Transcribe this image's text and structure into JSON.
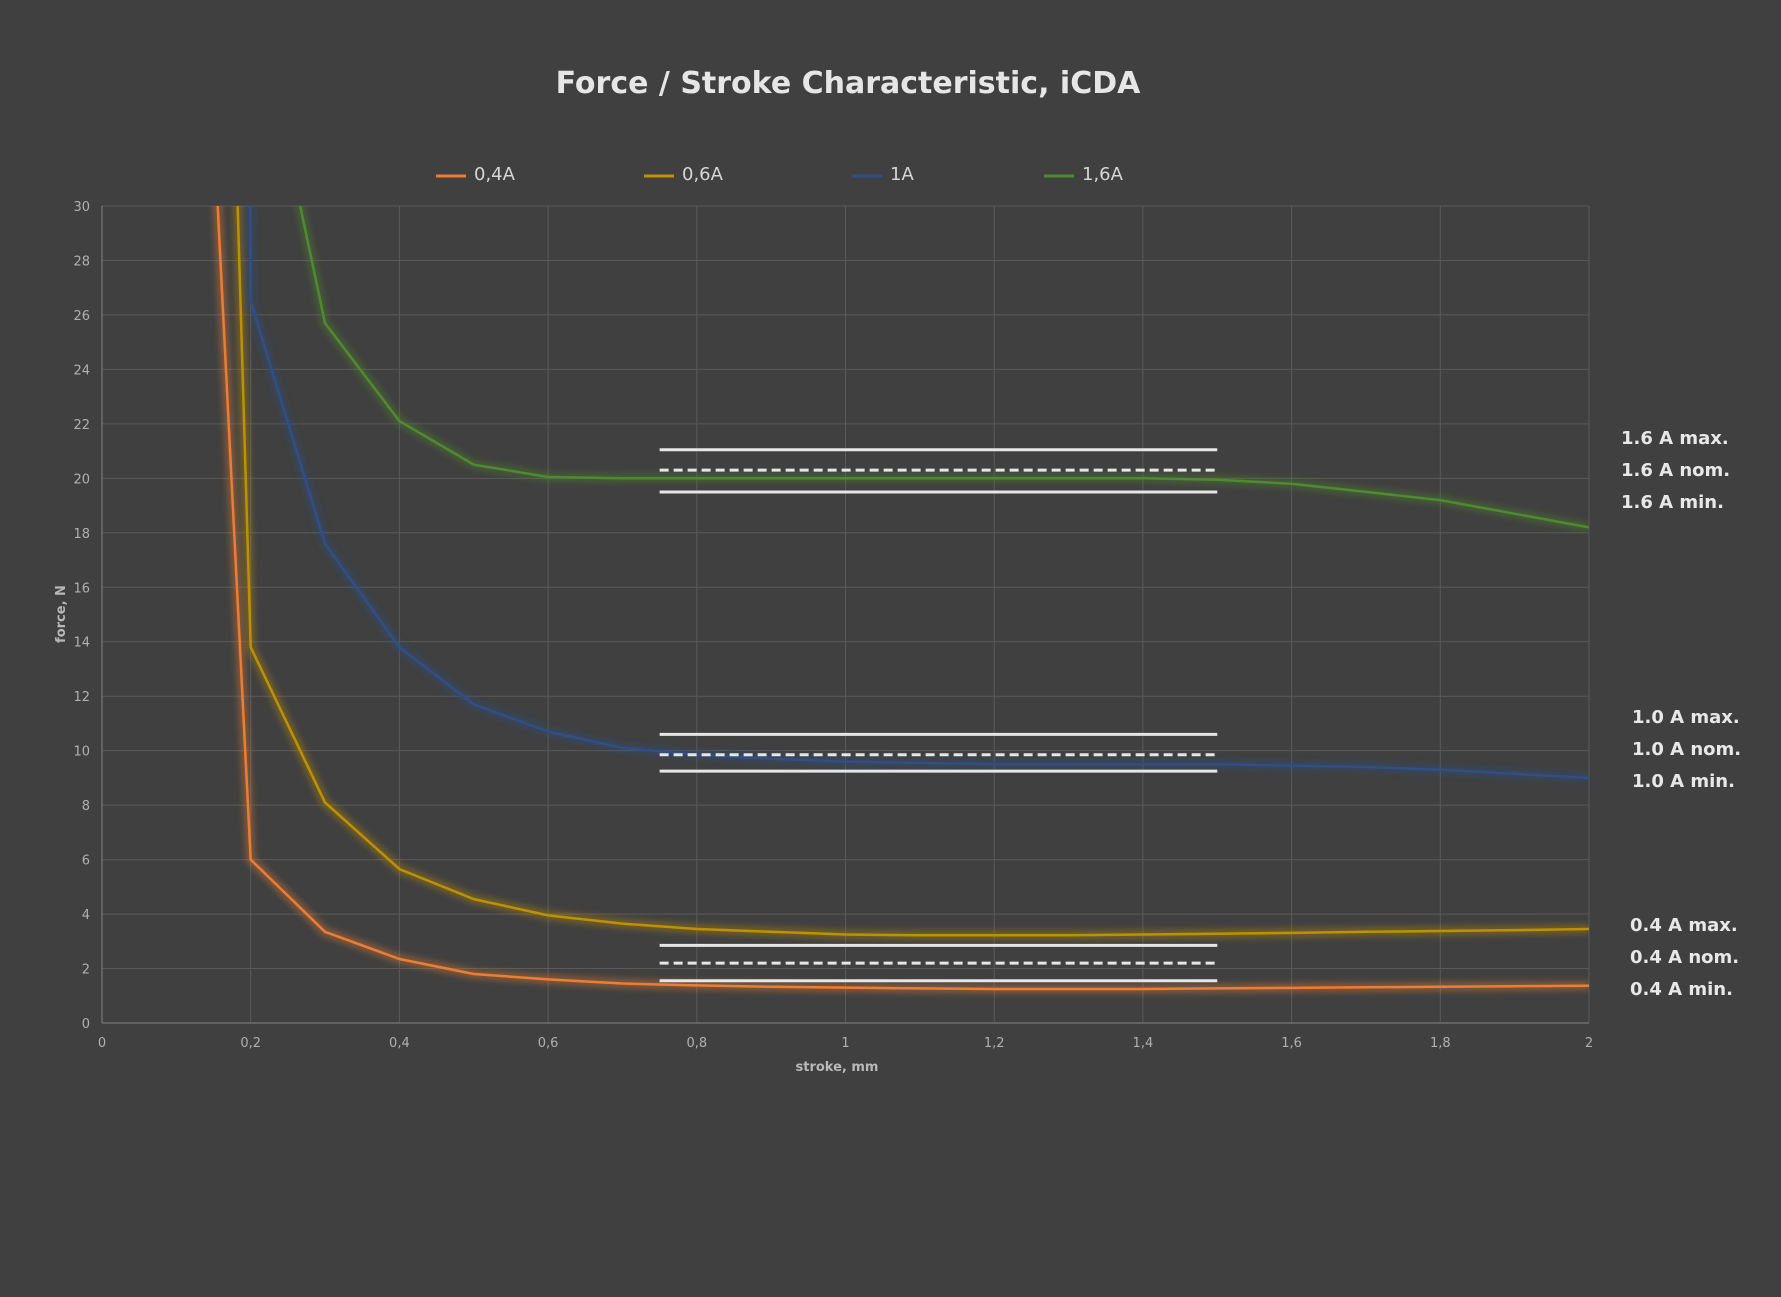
{
  "chart_data": {
    "type": "line",
    "title": "Force / Stroke Characteristic, iCDA",
    "xlabel": "stroke, mm",
    "ylabel": "force, N",
    "xlim": [
      0,
      2
    ],
    "ylim": [
      0,
      30
    ],
    "x_ticks": [
      0,
      0.2,
      0.4,
      0.6,
      0.8,
      1,
      1.2,
      1.4,
      1.6,
      1.8,
      2
    ],
    "x_tick_labels": [
      "0",
      "0,2",
      "0,4",
      "0,6",
      "0,8",
      "1",
      "1,2",
      "1,4",
      "1,6",
      "1,8",
      "2"
    ],
    "y_ticks": [
      0,
      2,
      4,
      6,
      8,
      10,
      12,
      14,
      16,
      18,
      20,
      22,
      24,
      26,
      28,
      30
    ],
    "y_tick_labels": [
      "0",
      "2",
      "4",
      "6",
      "8",
      "10",
      "12",
      "14",
      "16",
      "18",
      "20",
      "22",
      "24",
      "26",
      "28",
      "30"
    ],
    "grid": true,
    "legend_position": "top",
    "series": [
      {
        "name": "0,4A",
        "color": "#ed7d31",
        "x": [
          0.1,
          0.2,
          0.3,
          0.4,
          0.5,
          0.6,
          0.7,
          0.8,
          0.9,
          1.0,
          1.1,
          1.2,
          1.3,
          1.4,
          1.5,
          1.6,
          1.7,
          1.8,
          1.9,
          2.0
        ],
        "y": [
          60,
          6.0,
          3.35,
          2.35,
          1.8,
          1.6,
          1.45,
          1.38,
          1.33,
          1.3,
          1.27,
          1.25,
          1.25,
          1.25,
          1.27,
          1.29,
          1.31,
          1.33,
          1.35,
          1.37
        ]
      },
      {
        "name": "0,6A",
        "color": "#bf9000",
        "x": [
          0.15,
          0.2,
          0.3,
          0.4,
          0.5,
          0.6,
          0.7,
          0.8,
          0.9,
          1.0,
          1.1,
          1.2,
          1.3,
          1.4,
          1.5,
          1.6,
          1.7,
          1.8,
          1.9,
          2.0
        ],
        "y": [
          60,
          13.8,
          8.1,
          5.65,
          4.55,
          3.95,
          3.65,
          3.45,
          3.35,
          3.25,
          3.22,
          3.22,
          3.22,
          3.25,
          3.28,
          3.31,
          3.35,
          3.38,
          3.41,
          3.45
        ]
      },
      {
        "name": "1A",
        "color": "#2f4f88",
        "x": [
          0.19,
          0.2,
          0.3,
          0.4,
          0.5,
          0.6,
          0.7,
          0.8,
          0.9,
          1.0,
          1.1,
          1.2,
          1.3,
          1.4,
          1.5,
          1.6,
          1.7,
          1.8,
          1.9,
          2.0
        ],
        "y": [
          60,
          26.5,
          17.6,
          13.8,
          11.7,
          10.7,
          10.1,
          9.85,
          9.7,
          9.6,
          9.55,
          9.5,
          9.5,
          9.5,
          9.5,
          9.45,
          9.4,
          9.3,
          9.15,
          9.0
        ]
      },
      {
        "name": "1,6A",
        "color": "#4e8a2e",
        "x": [
          0.22,
          0.3,
          0.4,
          0.5,
          0.6,
          0.7,
          0.8,
          0.9,
          1.0,
          1.1,
          1.2,
          1.3,
          1.4,
          1.5,
          1.6,
          1.7,
          1.8,
          1.9,
          2.0
        ],
        "y": [
          36,
          25.7,
          22.1,
          20.5,
          20.05,
          20.0,
          20.0,
          20.0,
          20.0,
          20.0,
          20.0,
          20.0,
          20.0,
          19.95,
          19.8,
          19.5,
          19.2,
          18.7,
          18.2
        ]
      }
    ],
    "reference_lines": [
      {
        "label": "1.6 A max.",
        "y": 21.05,
        "x_range": [
          0.75,
          1.5
        ],
        "style": "solid"
      },
      {
        "label": "1.6 A nom.",
        "y": 20.3,
        "x_range": [
          0.75,
          1.5
        ],
        "style": "dashed"
      },
      {
        "label": "1.6 A min.",
        "y": 19.5,
        "x_range": [
          0.75,
          1.5
        ],
        "style": "solid"
      },
      {
        "label": "1.0 A max.",
        "y": 10.6,
        "x_range": [
          0.75,
          1.5
        ],
        "style": "solid"
      },
      {
        "label": "1.0 A nom.",
        "y": 9.85,
        "x_range": [
          0.75,
          1.5
        ],
        "style": "dashed"
      },
      {
        "label": "1.0 A min.",
        "y": 9.25,
        "x_range": [
          0.75,
          1.5
        ],
        "style": "solid"
      },
      {
        "label": "0.4 A max.",
        "y": 2.85,
        "x_range": [
          0.75,
          1.5
        ],
        "style": "solid"
      },
      {
        "label": "0.4 A nom.",
        "y": 2.2,
        "x_range": [
          0.75,
          1.5
        ],
        "style": "dashed"
      },
      {
        "label": "0.4 A min.",
        "y": 1.55,
        "x_range": [
          0.75,
          1.5
        ],
        "style": "solid"
      }
    ]
  },
  "colors": {
    "background": "#404040",
    "grid": "#5a5a5a",
    "axis": "#6e6e6e",
    "reference_line": "#e6e6e6"
  }
}
